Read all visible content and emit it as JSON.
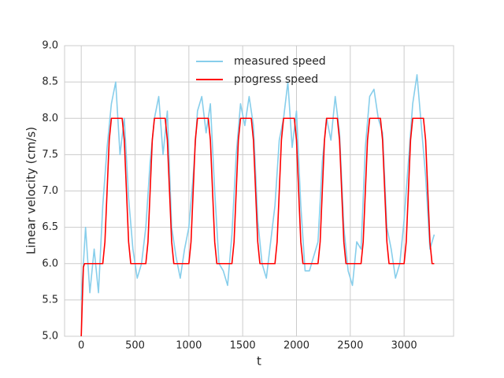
{
  "chart_data": {
    "type": "line",
    "xlabel": "t",
    "ylabel": "Linear velocity (cm/s)",
    "xlim": [
      -155,
      3460
    ],
    "ylim": [
      5,
      9
    ],
    "xticks": [
      0,
      500,
      1000,
      1500,
      2000,
      2500,
      3000
    ],
    "yticks": [
      {
        "value": 5,
        "label": "5.0"
      },
      {
        "value": 5.5,
        "label": "5.5"
      },
      {
        "value": 6,
        "label": "6.0"
      },
      {
        "value": 6.5,
        "label": "6.5"
      },
      {
        "value": 7,
        "label": "7.0"
      },
      {
        "value": 7.5,
        "label": "7.5"
      },
      {
        "value": 8,
        "label": "8.0"
      },
      {
        "value": 8.5,
        "label": "8.5"
      },
      {
        "value": 9,
        "label": "9.0"
      }
    ],
    "grid": true,
    "legend": "upper center",
    "series": [
      {
        "name": "measured speed",
        "color": "#87ceeb",
        "x": [
          0,
          40,
          80,
          120,
          160,
          200,
          240,
          280,
          320,
          360,
          400,
          440,
          480,
          520,
          560,
          600,
          640,
          680,
          720,
          760,
          800,
          840,
          880,
          920,
          960,
          1000,
          1040,
          1080,
          1120,
          1160,
          1200,
          1240,
          1280,
          1320,
          1360,
          1400,
          1440,
          1480,
          1520,
          1560,
          1600,
          1640,
          1680,
          1720,
          1760,
          1800,
          1840,
          1880,
          1920,
          1960,
          2000,
          2040,
          2080,
          2120,
          2160,
          2200,
          2240,
          2280,
          2320,
          2360,
          2400,
          2440,
          2480,
          2520,
          2560,
          2600,
          2640,
          2680,
          2720,
          2760,
          2800,
          2840,
          2880,
          2920,
          2960,
          3000,
          3040,
          3080,
          3120,
          3160,
          3200,
          3240,
          3280
        ],
        "values": [
          5.5,
          6.5,
          5.6,
          6.2,
          5.6,
          6.8,
          7.6,
          8.2,
          8.5,
          7.5,
          8.0,
          6.9,
          6.2,
          5.8,
          6.0,
          6.5,
          7.4,
          8.0,
          8.3,
          7.5,
          8.1,
          6.5,
          6.1,
          5.8,
          6.2,
          6.5,
          7.2,
          8.1,
          8.3,
          7.8,
          8.2,
          7.0,
          6.0,
          5.9,
          5.7,
          6.4,
          7.5,
          8.2,
          7.9,
          8.3,
          7.9,
          6.6,
          6.0,
          5.8,
          6.3,
          6.8,
          7.7,
          8.0,
          8.5,
          7.6,
          8.1,
          6.8,
          5.9,
          5.9,
          6.1,
          6.3,
          7.4,
          8.0,
          7.7,
          8.3,
          7.8,
          6.5,
          5.9,
          5.7,
          6.3,
          6.2,
          7.6,
          8.3,
          8.4,
          8.0,
          7.8,
          6.5,
          6.2,
          5.8,
          6.0,
          6.6,
          7.4,
          8.2,
          8.6,
          7.9,
          7.2,
          6.2,
          6.4
        ]
      },
      {
        "name": "progress speed",
        "color": "#ff0000",
        "x": [
          0,
          10,
          20,
          30,
          200,
          220,
          240,
          260,
          280,
          380,
          400,
          420,
          440,
          460,
          600,
          620,
          640,
          660,
          680,
          780,
          800,
          820,
          840,
          860,
          1000,
          1020,
          1040,
          1060,
          1080,
          1180,
          1200,
          1220,
          1240,
          1260,
          1400,
          1420,
          1440,
          1460,
          1480,
          1580,
          1600,
          1620,
          1640,
          1660,
          1800,
          1820,
          1840,
          1860,
          1880,
          1980,
          2000,
          2020,
          2040,
          2060,
          2200,
          2220,
          2240,
          2260,
          2280,
          2380,
          2400,
          2420,
          2440,
          2460,
          2600,
          2620,
          2640,
          2660,
          2680,
          2780,
          2800,
          2820,
          2840,
          2860,
          3000,
          3020,
          3040,
          3060,
          3080,
          3180,
          3200,
          3220,
          3240,
          3260,
          3280
        ],
        "values": [
          5.0,
          5.5,
          5.95,
          6.0,
          6.0,
          6.3,
          7.0,
          7.7,
          8.0,
          8.0,
          7.7,
          7.0,
          6.3,
          6.0,
          6.0,
          6.3,
          7.0,
          7.7,
          8.0,
          8.0,
          7.7,
          7.0,
          6.3,
          6.0,
          6.0,
          6.3,
          7.0,
          7.7,
          8.0,
          8.0,
          7.7,
          7.0,
          6.3,
          6.0,
          6.0,
          6.3,
          7.0,
          7.7,
          8.0,
          8.0,
          7.7,
          7.0,
          6.3,
          6.0,
          6.0,
          6.3,
          7.0,
          7.7,
          8.0,
          8.0,
          7.7,
          7.0,
          6.3,
          6.0,
          6.0,
          6.3,
          7.0,
          7.7,
          8.0,
          8.0,
          7.7,
          7.0,
          6.3,
          6.0,
          6.0,
          6.3,
          7.0,
          7.7,
          8.0,
          8.0,
          7.7,
          7.0,
          6.3,
          6.0,
          6.0,
          6.3,
          7.0,
          7.7,
          8.0,
          8.0,
          7.7,
          7.0,
          6.3,
          6.0,
          6.0
        ]
      }
    ]
  }
}
